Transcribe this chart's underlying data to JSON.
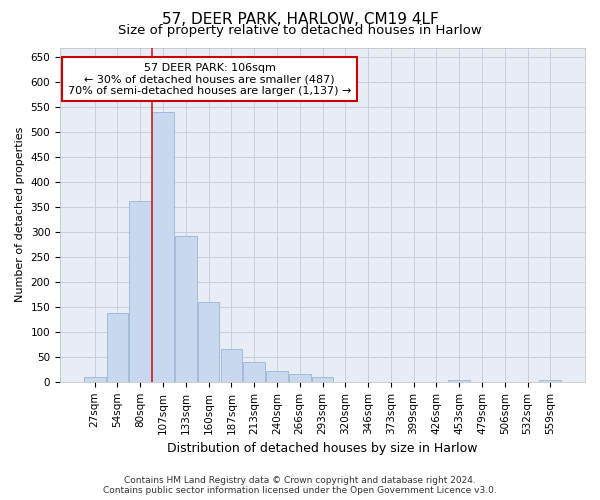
{
  "title1": "57, DEER PARK, HARLOW, CM19 4LF",
  "title2": "Size of property relative to detached houses in Harlow",
  "xlabel": "Distribution of detached houses by size in Harlow",
  "ylabel": "Number of detached properties",
  "categories": [
    "27sqm",
    "54sqm",
    "80sqm",
    "107sqm",
    "133sqm",
    "160sqm",
    "187sqm",
    "213sqm",
    "240sqm",
    "266sqm",
    "293sqm",
    "320sqm",
    "346sqm",
    "373sqm",
    "399sqm",
    "426sqm",
    "453sqm",
    "479sqm",
    "506sqm",
    "532sqm",
    "559sqm"
  ],
  "values": [
    10,
    137,
    362,
    540,
    293,
    160,
    65,
    40,
    22,
    15,
    10,
    0,
    0,
    0,
    0,
    0,
    3,
    0,
    0,
    0,
    3
  ],
  "bar_color": "#c8d8ee",
  "bar_edge_color": "#9ab5d8",
  "red_line_bar_index": 3,
  "annotation_text": "57 DEER PARK: 106sqm\n← 30% of detached houses are smaller (487)\n70% of semi-detached houses are larger (1,137) →",
  "annotation_box_color": "#ffffff",
  "annotation_box_edge_color": "#cc0000",
  "ylim": [
    0,
    670
  ],
  "yticks": [
    0,
    50,
    100,
    150,
    200,
    250,
    300,
    350,
    400,
    450,
    500,
    550,
    600,
    650
  ],
  "footer1": "Contains HM Land Registry data © Crown copyright and database right 2024.",
  "footer2": "Contains public sector information licensed under the Open Government Licence v3.0.",
  "bg_color": "#ffffff",
  "plot_bg_color": "#e8edf5",
  "grid_color": "#c8d0e0",
  "title1_fontsize": 11,
  "title2_fontsize": 9.5,
  "ylabel_fontsize": 8,
  "xlabel_fontsize": 9,
  "tick_fontsize": 7.5,
  "ann_fontsize": 8,
  "footer_fontsize": 6.5
}
